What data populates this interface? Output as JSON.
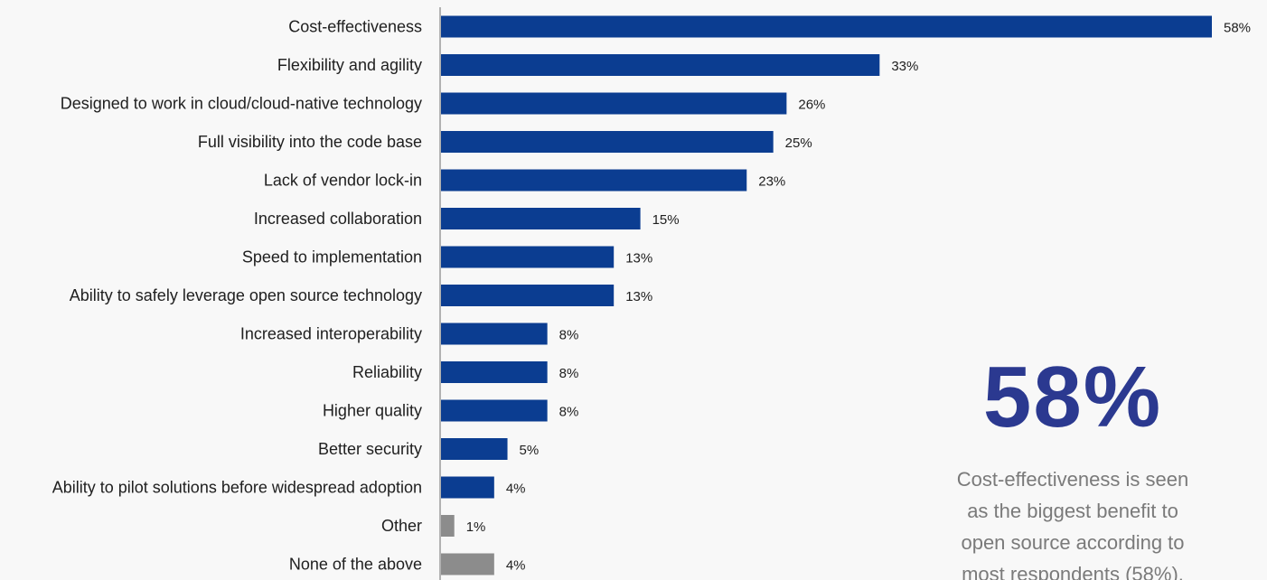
{
  "chart_data": {
    "type": "bar",
    "orientation": "horizontal",
    "categories": [
      "Cost-effectiveness",
      "Flexibility and agility",
      "Designed to work in cloud/cloud-native technology",
      "Full visibility into the code base",
      "Lack of vendor lock-in",
      "Increased collaboration",
      "Speed to implementation",
      "Ability to safely leverage open source technology",
      "Increased interoperability",
      "Reliability",
      "Higher quality",
      "Better security",
      "Ability to pilot solutions before widespread adoption",
      "Other",
      "None of the above"
    ],
    "values": [
      58,
      33,
      26,
      25,
      23,
      15,
      13,
      13,
      8,
      8,
      8,
      5,
      4,
      1,
      4
    ],
    "value_labels": [
      "58%",
      "33%",
      "26%",
      "25%",
      "23%",
      "15%",
      "13%",
      "13%",
      "8%",
      "8%",
      "8%",
      "5%",
      "4%",
      "1%",
      "4%"
    ],
    "unit": "%",
    "xlim": [
      0,
      58
    ],
    "grid": false,
    "bar_colors": [
      "#0b3d91",
      "#0b3d91",
      "#0b3d91",
      "#0b3d91",
      "#0b3d91",
      "#0b3d91",
      "#0b3d91",
      "#0b3d91",
      "#0b3d91",
      "#0b3d91",
      "#0b3d91",
      "#0b3d91",
      "#0b3d91",
      "#8c8c8c",
      "#8c8c8c"
    ]
  },
  "callout": {
    "value": "58%",
    "text_lines": [
      "Cost-effectiveness is seen",
      "as the biggest benefit to",
      "open source according to",
      "most respondents (58%)."
    ]
  },
  "colors": {
    "primary_bar": "#0b3d91",
    "secondary_bar": "#8c8c8c",
    "callout_accent": "#2b3990"
  }
}
